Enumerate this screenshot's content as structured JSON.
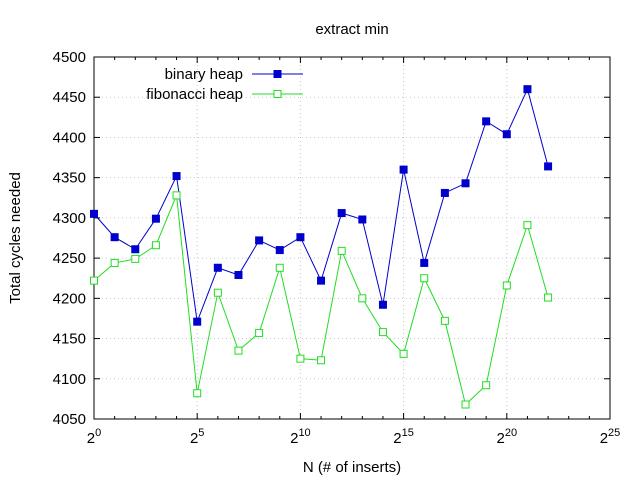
{
  "chart_data": {
    "type": "line",
    "title": "extract min",
    "xlabel": "N (# of inserts)",
    "ylabel": "Total cycles needed",
    "x_scale": "log2",
    "xlim_exponent": [
      0,
      25
    ],
    "ylim": [
      4050,
      4500
    ],
    "x_ticks": [
      {
        "base": "2",
        "exp": "0"
      },
      {
        "base": "2",
        "exp": "5"
      },
      {
        "base": "2",
        "exp": "10"
      },
      {
        "base": "2",
        "exp": "15"
      },
      {
        "base": "2",
        "exp": "20"
      },
      {
        "base": "2",
        "exp": "25"
      }
    ],
    "y_ticks": [
      "4050",
      "4100",
      "4150",
      "4200",
      "4250",
      "4300",
      "4350",
      "4400",
      "4450",
      "4500"
    ],
    "grid": true,
    "legend_position": "top-left",
    "x_exponents": [
      0,
      1,
      2,
      3,
      4,
      5,
      6,
      7,
      8,
      9,
      10,
      11,
      12,
      13,
      14,
      15,
      16,
      17,
      18,
      19,
      20,
      21,
      22
    ],
    "series": [
      {
        "name": "binary heap",
        "color": "#0000cc",
        "marker": "filled-square",
        "values": [
          4305,
          4276,
          4261,
          4299,
          4352,
          4171,
          4238,
          4229,
          4272,
          4260,
          4276,
          4222,
          4306,
          4298,
          4192,
          4360,
          4244,
          4331,
          4343,
          4420,
          4404,
          4460,
          4364
        ]
      },
      {
        "name": "fibonacci heap",
        "color": "#22dd22",
        "marker": "open-square",
        "values": [
          4222,
          4244,
          4249,
          4266,
          4328,
          4082,
          4207,
          4135,
          4157,
          4238,
          4125,
          4123,
          4259,
          4200,
          4158,
          4131,
          4225,
          4172,
          4068,
          4092,
          4216,
          4291,
          4201
        ]
      }
    ]
  }
}
